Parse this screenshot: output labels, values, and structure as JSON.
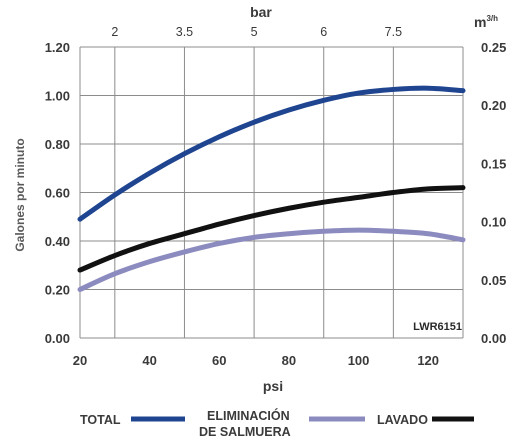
{
  "chart_data": {
    "type": "line",
    "model_label": "LWR6151",
    "x_bottom": {
      "title": "psi",
      "range": [
        20,
        130
      ],
      "ticks": [
        20,
        40,
        60,
        80,
        100,
        120
      ],
      "tick_labels": [
        "20",
        "40",
        "60",
        "80",
        "100",
        "120"
      ]
    },
    "x_top": {
      "title": "bar",
      "tick_values_psi": [
        30,
        50,
        70,
        90,
        110
      ],
      "tick_labels": [
        "2",
        "3.5",
        "5",
        "6",
        "7.5"
      ]
    },
    "y_left": {
      "title": "Galones por minuto",
      "range": [
        0,
        1.2
      ],
      "ticks": [
        0,
        0.2,
        0.4,
        0.6,
        0.8,
        1.0,
        1.2
      ],
      "tick_labels": [
        "0.00",
        "0.20",
        "0.40",
        "0.60",
        "0.80",
        "1.00",
        "1.20"
      ]
    },
    "y_right": {
      "title": "m",
      "title_sup": "3/h",
      "range": [
        0,
        0.25
      ],
      "tick_labels": [
        "0.00",
        "0.05",
        "0.10",
        "0.15",
        "0.20",
        "0.25"
      ]
    },
    "grid": true,
    "series": [
      {
        "name": "TOTAL",
        "color": "#1f4591",
        "x": [
          20,
          30,
          40,
          50,
          60,
          70,
          80,
          90,
          100,
          110,
          120,
          130
        ],
        "y": [
          0.49,
          0.59,
          0.68,
          0.76,
          0.83,
          0.89,
          0.94,
          0.98,
          1.01,
          1.025,
          1.03,
          1.02
        ]
      },
      {
        "name": "ELIMINACIÓN DE SALMUERA",
        "name_lines": [
          "ELIMINACIÓN",
          "DE SALMUERA"
        ],
        "color": "#8c8bbf",
        "x": [
          20,
          30,
          40,
          50,
          60,
          70,
          80,
          90,
          100,
          110,
          120,
          130
        ],
        "y": [
          0.2,
          0.265,
          0.315,
          0.355,
          0.39,
          0.415,
          0.43,
          0.44,
          0.445,
          0.44,
          0.43,
          0.405
        ]
      },
      {
        "name": "LAVADO",
        "color": "#111111",
        "x": [
          20,
          30,
          40,
          50,
          60,
          70,
          80,
          90,
          100,
          110,
          120,
          130
        ],
        "y": [
          0.28,
          0.34,
          0.39,
          0.43,
          0.47,
          0.505,
          0.535,
          0.56,
          0.58,
          0.6,
          0.615,
          0.62
        ]
      }
    ]
  }
}
